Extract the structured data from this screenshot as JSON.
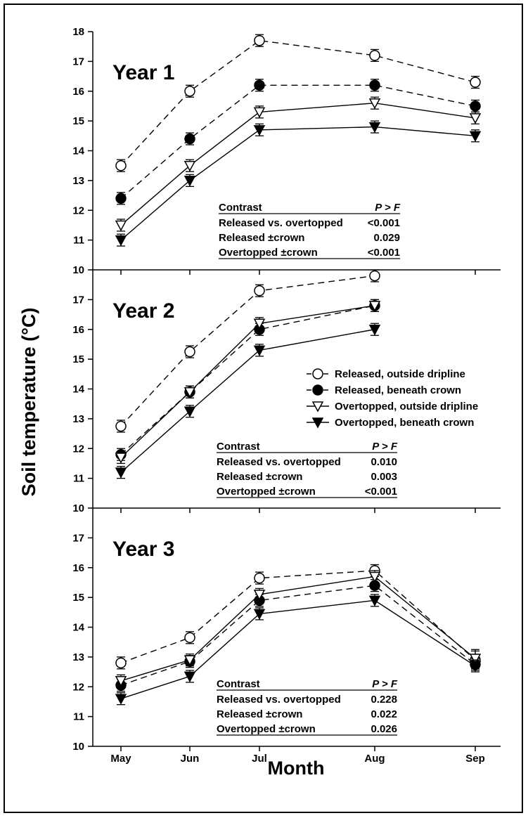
{
  "chart_data": {
    "type": "line",
    "ylabel": "Soil temperature (°C)",
    "xlabel": "Month",
    "categories": [
      "May",
      "Jun",
      "Jul",
      "Aug",
      "Sep"
    ],
    "legend": {
      "placement": "center-right of Year 2 panel",
      "entries": [
        {
          "label": "Released, outside dripline",
          "marker": "open-circle",
          "line": "dashed"
        },
        {
          "label": "Released, beneath crown",
          "marker": "filled-circle",
          "line": "dashed"
        },
        {
          "label": "Overtopped, outside dripline",
          "marker": "open-triangle-down",
          "line": "solid"
        },
        {
          "label": "Overtopped, beneath crown",
          "marker": "filled-triangle-down",
          "line": "solid"
        }
      ]
    },
    "panels": [
      {
        "title": "Year 1",
        "ylim": [
          10,
          18
        ],
        "yticks": [
          "10",
          "11",
          "12",
          "13",
          "14",
          "15",
          "16",
          "17",
          "18"
        ],
        "series": [
          {
            "values": [
              13.5,
              16.0,
              17.7,
              17.2,
              16.3
            ],
            "err": [
              0.2,
              0.2,
              0.2,
              0.2,
              0.2
            ]
          },
          {
            "values": [
              12.4,
              14.4,
              16.2,
              16.2,
              15.5
            ],
            "err": [
              0.2,
              0.2,
              0.2,
              0.2,
              0.2
            ]
          },
          {
            "values": [
              11.5,
              13.5,
              15.3,
              15.6,
              15.1
            ],
            "err": [
              0.2,
              0.2,
              0.2,
              0.2,
              0.2
            ]
          },
          {
            "values": [
              11.0,
              13.0,
              14.7,
              14.8,
              14.5
            ],
            "err": [
              0.2,
              0.2,
              0.2,
              0.2,
              0.2
            ]
          }
        ],
        "contrast_table": {
          "header": [
            "Contrast",
            "P > F"
          ],
          "rows": [
            [
              "Released vs. overtopped",
              "<0.001"
            ],
            [
              "Released ±crown",
              "0.029"
            ],
            [
              "Overtopped ±crown",
              "<0.001"
            ]
          ]
        }
      },
      {
        "title": "Year 2",
        "ylim": [
          10,
          18
        ],
        "yticks": [
          "10",
          "11",
          "12",
          "13",
          "14",
          "15",
          "16",
          "17"
        ],
        "series": [
          {
            "values": [
              12.75,
              15.25,
              17.3,
              17.8,
              null
            ],
            "err": [
              0.2,
              0.2,
              0.2,
              0.2,
              0
            ]
          },
          {
            "values": [
              11.8,
              13.9,
              16.0,
              16.8,
              null
            ],
            "err": [
              0.2,
              0.2,
              0.2,
              0.2,
              0
            ]
          },
          {
            "values": [
              11.7,
              13.9,
              16.2,
              16.8,
              null
            ],
            "err": [
              0.2,
              0.2,
              0.2,
              0.2,
              0
            ]
          },
          {
            "values": [
              11.2,
              13.25,
              15.3,
              16.0,
              null
            ],
            "err": [
              0.2,
              0.2,
              0.2,
              0.2,
              0
            ]
          }
        ],
        "contrast_table": {
          "header": [
            "Contrast",
            "P > F"
          ],
          "rows": [
            [
              "Released vs. overtopped",
              "0.010"
            ],
            [
              "Released ±crown",
              "0.003"
            ],
            [
              "Overtopped ±crown",
              "<0.001"
            ]
          ]
        }
      },
      {
        "title": "Year 3",
        "ylim": [
          10,
          18
        ],
        "yticks": [
          "10",
          "11",
          "12",
          "13",
          "14",
          "15",
          "16",
          "17"
        ],
        "series": [
          {
            "values": [
              12.8,
              13.65,
              15.65,
              15.9,
              12.9
            ],
            "err": [
              0.2,
              0.2,
              0.2,
              0.2,
              0.3
            ]
          },
          {
            "values": [
              12.05,
              12.85,
              14.9,
              15.4,
              12.75
            ],
            "err": [
              0.2,
              0.2,
              0.2,
              0.2,
              0.2
            ]
          },
          {
            "values": [
              12.2,
              12.9,
              15.1,
              15.7,
              12.95
            ],
            "err": [
              0.2,
              0.2,
              0.2,
              0.2,
              0.3
            ]
          },
          {
            "values": [
              11.6,
              12.35,
              14.45,
              14.9,
              12.7
            ],
            "err": [
              0.2,
              0.2,
              0.2,
              0.2,
              0.2
            ]
          }
        ],
        "contrast_table": {
          "header": [
            "Contrast",
            "P > F"
          ],
          "rows": [
            [
              "Released vs. overtopped",
              "0.228"
            ],
            [
              "Released ±crown",
              "0.022"
            ],
            [
              "Overtopped ±crown",
              "0.026"
            ]
          ]
        }
      }
    ]
  }
}
